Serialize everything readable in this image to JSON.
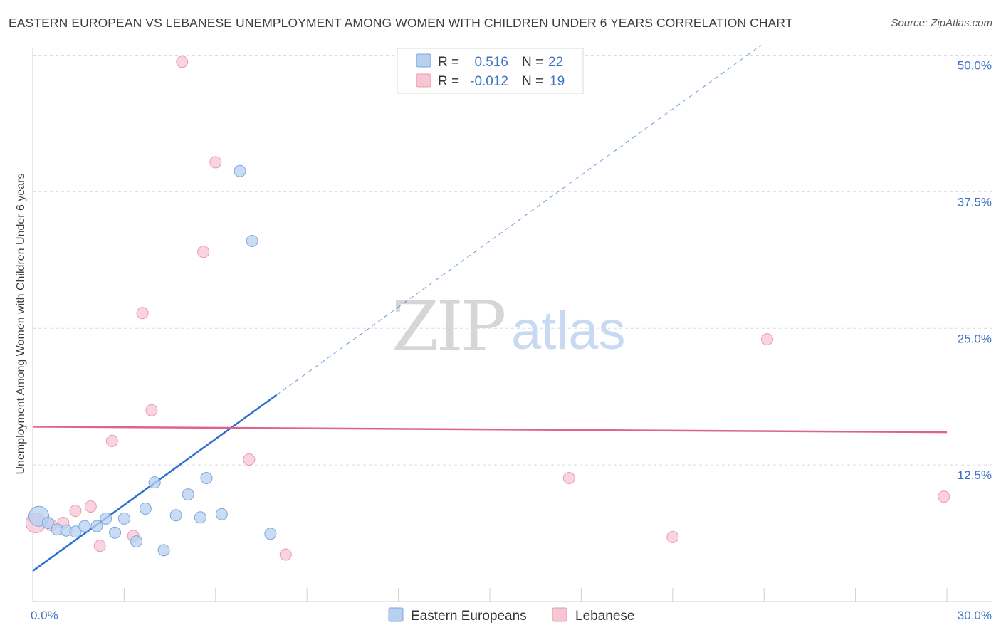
{
  "title": "EASTERN EUROPEAN VS LEBANESE UNEMPLOYMENT AMONG WOMEN WITH CHILDREN UNDER 6 YEARS CORRELATION CHART",
  "source": "Source: ZipAtlas.com",
  "watermark": {
    "zip": "ZIP",
    "atlas": "atlas"
  },
  "colors": {
    "blue_fill": "#b7d0f0",
    "blue_stroke": "#7aa6dc",
    "blue_line": "#2b6fcf",
    "pink_fill": "#f7c6d3",
    "pink_stroke": "#e99ab0",
    "pink_line": "#e0628e",
    "tick_text": "#3b73c4",
    "grid": "#dcdcdc"
  },
  "chart_data": {
    "type": "scatter",
    "title": "EASTERN EUROPEAN VS LEBANESE UNEMPLOYMENT AMONG WOMEN WITH CHILDREN UNDER 6 YEARS CORRELATION CHART",
    "xlabel": "",
    "ylabel": "Unemployment Among Women with Children Under 6 years",
    "xlim": [
      0,
      30
    ],
    "ylim": [
      0,
      51
    ],
    "x_tick_labels": [
      {
        "value": 0,
        "label": "0.0%"
      },
      {
        "value": 30,
        "label": "30.0%"
      }
    ],
    "y_tick_labels": [
      {
        "value": 12.5,
        "label": "12.5%"
      },
      {
        "value": 25,
        "label": "25.0%"
      },
      {
        "value": 37.5,
        "label": "37.5%"
      },
      {
        "value": 50,
        "label": "50.0%"
      }
    ],
    "legend_stats": [
      {
        "r_label": "R =",
        "r_value": "0.516",
        "n_label": "N =",
        "n_value": "22"
      },
      {
        "r_label": "R =",
        "r_value": "-0.012",
        "n_label": "N =",
        "n_value": "19"
      }
    ],
    "series": [
      {
        "name": "Eastern Europeans",
        "points": [
          [
            0.2,
            7.8
          ],
          [
            0.5,
            7.2
          ],
          [
            0.8,
            6.6
          ],
          [
            1.1,
            6.5
          ],
          [
            1.4,
            6.4
          ],
          [
            1.7,
            6.9
          ],
          [
            2.1,
            6.9
          ],
          [
            2.4,
            7.6
          ],
          [
            2.7,
            6.3
          ],
          [
            3.0,
            7.6
          ],
          [
            3.4,
            5.5
          ],
          [
            3.7,
            8.5
          ],
          [
            4.0,
            10.9
          ],
          [
            4.3,
            4.7
          ],
          [
            4.7,
            7.9
          ],
          [
            5.1,
            9.8
          ],
          [
            5.5,
            7.7
          ],
          [
            5.7,
            11.3
          ],
          [
            6.2,
            8.0
          ],
          [
            6.8,
            39.4
          ],
          [
            7.2,
            33.0
          ],
          [
            7.8,
            6.2
          ]
        ],
        "trend": {
          "x_solid": [
            0,
            8.0
          ],
          "y_solid": [
            2.8,
            18.9
          ],
          "x_dashed": [
            8.0,
            23.9
          ],
          "y_dashed": [
            18.9,
            50.9
          ]
        }
      },
      {
        "name": "Lebanese",
        "points": [
          [
            0.1,
            7.2
          ],
          [
            0.6,
            7.0
          ],
          [
            1.0,
            7.2
          ],
          [
            1.4,
            8.3
          ],
          [
            1.9,
            8.7
          ],
          [
            2.2,
            5.1
          ],
          [
            2.6,
            14.7
          ],
          [
            3.3,
            6.0
          ],
          [
            3.6,
            26.4
          ],
          [
            3.9,
            17.5
          ],
          [
            4.9,
            49.4
          ],
          [
            5.6,
            32.0
          ],
          [
            6.0,
            40.2
          ],
          [
            7.1,
            13.0
          ],
          [
            8.3,
            4.3
          ],
          [
            17.6,
            11.3
          ],
          [
            21.0,
            5.9
          ],
          [
            24.1,
            24.0
          ],
          [
            29.9,
            9.6
          ]
        ],
        "trend": {
          "x_solid": [
            0,
            30
          ],
          "y_solid": [
            16.0,
            15.5
          ]
        }
      }
    ]
  }
}
